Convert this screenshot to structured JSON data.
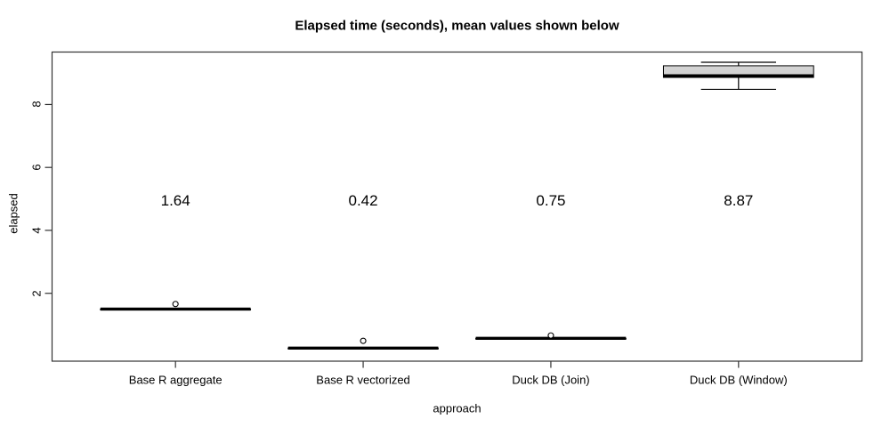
{
  "chart_data": {
    "type": "boxplot",
    "title": "Elapsed time (seconds), mean values shown below",
    "xlabel": "approach",
    "ylabel": "elapsed",
    "ylim": [
      -0.17,
      9.68
    ],
    "yticks": [
      2,
      4,
      6,
      8
    ],
    "xlim": [
      0.34,
      4.66
    ],
    "grid": false,
    "box_width": 0.8,
    "staple_width": 0.4,
    "box_fill": "#d3d3d3",
    "axis_color": "#333333",
    "text_color": "#000000",
    "mean_label_y": 4.92,
    "categories": [
      "Base R aggregate",
      "Base R vectorized",
      "Duck DB (Join)",
      "Duck DB (Window)"
    ],
    "groups": [
      {
        "label": "Base R aggregate",
        "x": 1,
        "mean_label": "1.64",
        "median": 1.5,
        "q1": 1.5,
        "q3": 1.5,
        "whisker_low": 1.5,
        "whisker_high": 1.5,
        "outliers": [
          1.66
        ]
      },
      {
        "label": "Base R vectorized",
        "x": 2,
        "mean_label": "0.42",
        "median": 0.26,
        "q1": 0.26,
        "q3": 0.26,
        "whisker_low": 0.26,
        "whisker_high": 0.26,
        "outliers": [
          0.49
        ]
      },
      {
        "label": "Duck DB (Join)",
        "x": 3,
        "mean_label": "0.75",
        "median": 0.57,
        "q1": 0.57,
        "q3": 0.57,
        "whisker_low": 0.57,
        "whisker_high": 0.57,
        "outliers": [
          0.66
        ]
      },
      {
        "label": "Duck DB (Window)",
        "x": 4,
        "mean_label": "8.87",
        "median": 8.91,
        "q1": 8.86,
        "q3": 9.23,
        "whisker_low": 8.48,
        "whisker_high": 9.34,
        "outliers": []
      }
    ]
  }
}
